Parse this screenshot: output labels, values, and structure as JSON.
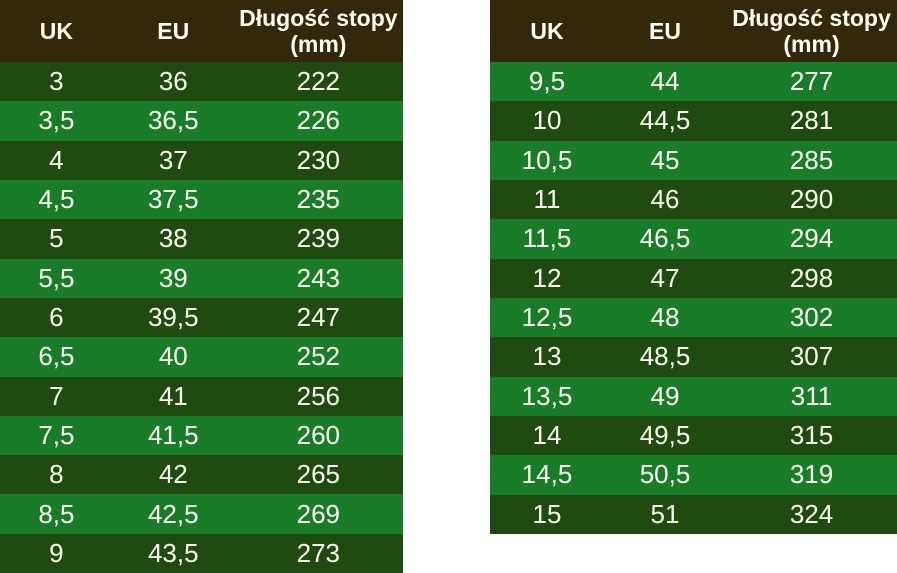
{
  "colors": {
    "header_bg": "#33280c",
    "row_dark": "#1f4a10",
    "row_light": "#187c28",
    "text": "#fdfdf2",
    "page_bg": "#ffffff"
  },
  "chart_data": [
    {
      "type": "table",
      "title": "",
      "columns": [
        "UK",
        "EU",
        "Długość stopy\n(mm)"
      ],
      "zebra_start": "dark",
      "rows": [
        [
          "3",
          "36",
          "222"
        ],
        [
          "3,5",
          "36,5",
          "226"
        ],
        [
          "4",
          "37",
          "230"
        ],
        [
          "4,5",
          "37,5",
          "235"
        ],
        [
          "5",
          "38",
          "239"
        ],
        [
          "5,5",
          "39",
          "243"
        ],
        [
          "6",
          "39,5",
          "247"
        ],
        [
          "6,5",
          "40",
          "252"
        ],
        [
          "7",
          "41",
          "256"
        ],
        [
          "7,5",
          "41,5",
          "260"
        ],
        [
          "8",
          "42",
          "265"
        ],
        [
          "8,5",
          "42,5",
          "269"
        ],
        [
          "9",
          "43,5",
          "273"
        ]
      ]
    },
    {
      "type": "table",
      "title": "",
      "columns": [
        "UK",
        "EU",
        "Długość stopy\n(mm)"
      ],
      "zebra_start": "light",
      "rows": [
        [
          "9,5",
          "44",
          "277"
        ],
        [
          "10",
          "44,5",
          "281"
        ],
        [
          "10,5",
          "45",
          "285"
        ],
        [
          "11",
          "46",
          "290"
        ],
        [
          "11,5",
          "46,5",
          "294"
        ],
        [
          "12",
          "47",
          "298"
        ],
        [
          "12,5",
          "48",
          "302"
        ],
        [
          "13",
          "48,5",
          "307"
        ],
        [
          "13,5",
          "49",
          "311"
        ],
        [
          "14",
          "49,5",
          "315"
        ],
        [
          "14,5",
          "50,5",
          "319"
        ],
        [
          "15",
          "51",
          "324"
        ]
      ]
    }
  ]
}
